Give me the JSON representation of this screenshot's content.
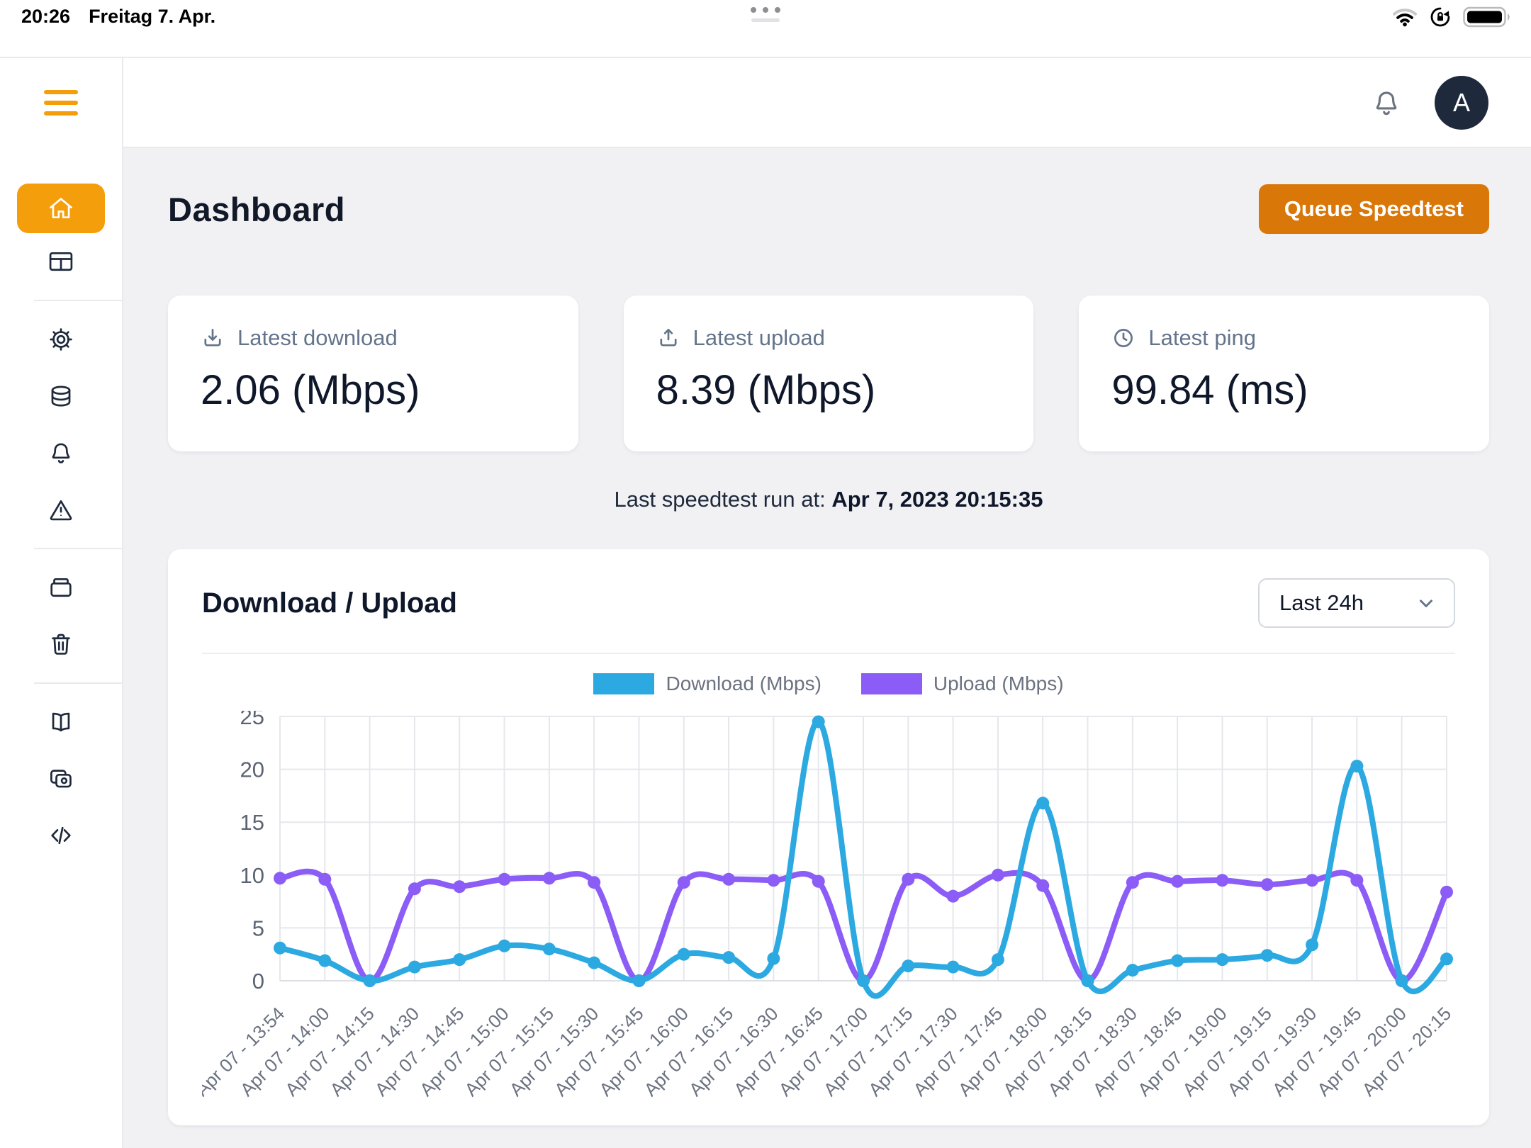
{
  "status_bar": {
    "time": "20:26",
    "date": "Freitag 7. Apr.",
    "icons": [
      "wifi-icon",
      "rotation-lock-icon",
      "battery-full-icon"
    ],
    "handle": "multitask-dots"
  },
  "navbar": {
    "icons": [
      "menu-icon",
      "bell-icon"
    ],
    "avatar_initial": "A"
  },
  "sidebar": {
    "groups": [
      {
        "items": [
          {
            "icon": "home",
            "active": true
          },
          {
            "icon": "table-cells",
            "active": false
          }
        ]
      },
      {
        "items": [
          {
            "icon": "cog",
            "active": false
          },
          {
            "icon": "circle-stack",
            "active": false
          },
          {
            "icon": "bell",
            "active": false
          },
          {
            "icon": "exclamation-triangle",
            "active": false
          }
        ]
      },
      {
        "items": [
          {
            "icon": "archive-box",
            "active": false
          },
          {
            "icon": "trash",
            "active": false
          }
        ]
      },
      {
        "items": [
          {
            "icon": "book-open",
            "active": false
          },
          {
            "icon": "duplicate",
            "active": false
          },
          {
            "icon": "code",
            "active": false
          }
        ]
      }
    ]
  },
  "page": {
    "title": "Dashboard",
    "queue_button": "Queue Speedtest"
  },
  "stats": [
    {
      "icon": "download-icon",
      "label": "Latest download",
      "value": "2.06 (Mbps)"
    },
    {
      "icon": "upload-icon",
      "label": "Latest upload",
      "value": "8.39 (Mbps)"
    },
    {
      "icon": "clock-icon",
      "label": "Latest ping",
      "value": "99.84 (ms)"
    }
  ],
  "last_run": {
    "prefix": "Last speedtest run at:",
    "timestamp": "Apr 7, 2023 20:15:35"
  },
  "chart_card": {
    "title": "Download / Upload",
    "range_selected": "Last 24h"
  },
  "chart_data": {
    "type": "line",
    "title": "Download / Upload",
    "categories": [
      "Apr 07 - 13:54",
      "Apr 07 - 14:00",
      "Apr 07 - 14:15",
      "Apr 07 - 14:30",
      "Apr 07 - 14:45",
      "Apr 07 - 15:00",
      "Apr 07 - 15:15",
      "Apr 07 - 15:30",
      "Apr 07 - 15:45",
      "Apr 07 - 16:00",
      "Apr 07 - 16:15",
      "Apr 07 - 16:30",
      "Apr 07 - 16:45",
      "Apr 07 - 17:00",
      "Apr 07 - 17:15",
      "Apr 07 - 17:30",
      "Apr 07 - 17:45",
      "Apr 07 - 18:00",
      "Apr 07 - 18:15",
      "Apr 07 - 18:30",
      "Apr 07 - 18:45",
      "Apr 07 - 19:00",
      "Apr 07 - 19:15",
      "Apr 07 - 19:30",
      "Apr 07 - 19:45",
      "Apr 07 - 20:00",
      "Apr 07 - 20:15"
    ],
    "series": [
      {
        "name": "Download (Mbps)",
        "color": "#2CA9E1",
        "values": [
          3.1,
          1.9,
          0,
          1.3,
          2.0,
          3.3,
          3.0,
          1.7,
          0,
          2.5,
          2.2,
          2.1,
          24.5,
          0,
          1.4,
          1.3,
          2.0,
          16.8,
          0,
          1.0,
          1.9,
          2.0,
          2.4,
          3.4,
          20.3,
          0,
          2.06
        ]
      },
      {
        "name": "Upload (Mbps)",
        "color": "#8B5CF6",
        "values": [
          9.7,
          9.6,
          0,
          8.7,
          8.9,
          9.6,
          9.7,
          9.3,
          0,
          9.3,
          9.6,
          9.5,
          9.4,
          0,
          9.6,
          8.0,
          10.0,
          9.0,
          0,
          9.3,
          9.4,
          9.5,
          9.1,
          9.5,
          9.5,
          0,
          8.39
        ]
      }
    ],
    "xlabel": "",
    "ylabel": "",
    "ylim": [
      0,
      25
    ],
    "yticks": [
      0,
      5,
      10,
      15,
      20,
      25
    ],
    "grid": true,
    "legend_position": "top",
    "colors": {
      "grid": "#E5E7EB",
      "tick_text": "#6B7280"
    }
  }
}
